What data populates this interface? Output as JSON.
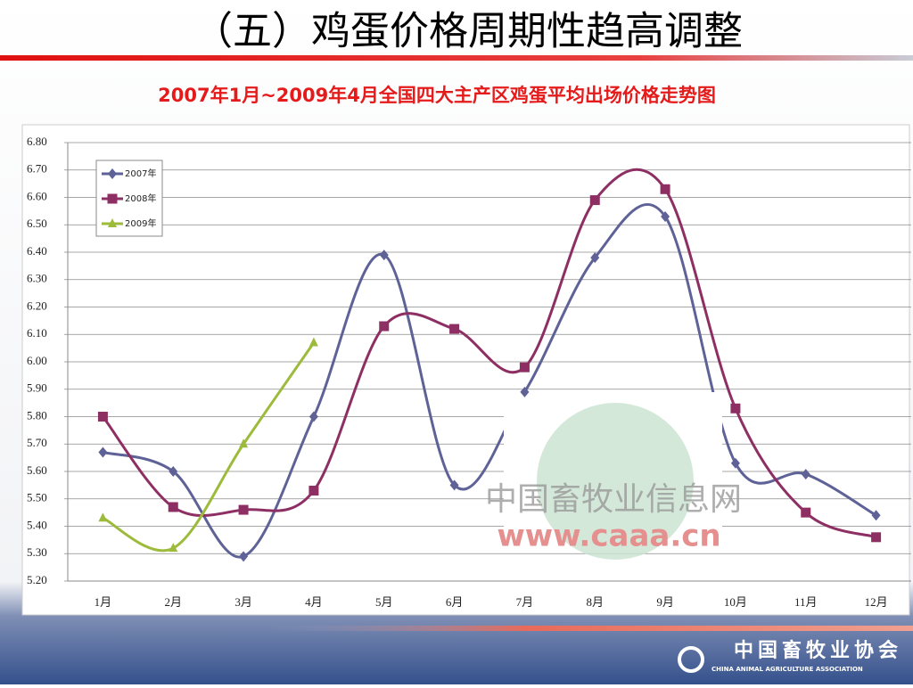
{
  "slide": {
    "title": "（五）鸡蛋价格周期性趋高调整",
    "watermark": [
      "中国畜牧业信息网",
      "www.caaa.cn"
    ],
    "footer_cn": "中国畜牧业协会",
    "footer_en": "CHINA ANIMAL AGRICULTURE ASSOCIATION"
  },
  "chart_data": {
    "type": "line",
    "title": "2007年1月~2009年4月全国四大主产区鸡蛋平均出场价格走势图",
    "categories": [
      "1月",
      "2月",
      "3月",
      "4月",
      "5月",
      "6月",
      "7月",
      "8月",
      "9月",
      "10月",
      "11月",
      "12月"
    ],
    "series": [
      {
        "name": "2007年",
        "color": "#5e6296",
        "marker": "diamond",
        "values": [
          5.67,
          5.6,
          5.29,
          5.8,
          6.39,
          5.55,
          5.89,
          6.38,
          6.53,
          5.63,
          5.59,
          5.44
        ]
      },
      {
        "name": "2008年",
        "color": "#8e2f64",
        "marker": "square",
        "values": [
          5.8,
          5.47,
          5.46,
          5.53,
          6.13,
          6.12,
          5.98,
          6.59,
          6.63,
          5.83,
          5.45,
          5.36
        ]
      },
      {
        "name": "2009年",
        "color": "#9dbb3b",
        "marker": "triangle",
        "values": [
          5.43,
          5.32,
          5.7,
          6.07,
          null,
          null,
          null,
          null,
          null,
          null,
          null,
          null
        ]
      }
    ],
    "ylim": [
      5.2,
      6.8
    ],
    "yticks": [
      {
        "value": 5.2,
        "label": "5.20"
      },
      {
        "value": 5.3,
        "label": "5.30"
      },
      {
        "value": 5.4,
        "label": "5.40"
      },
      {
        "value": 5.5,
        "label": "5.50"
      },
      {
        "value": 5.6,
        "label": "5.60"
      },
      {
        "value": 5.7,
        "label": "5.70"
      },
      {
        "value": 5.8,
        "label": "5.80"
      },
      {
        "value": 5.9,
        "label": "5.90"
      },
      {
        "value": 6.0,
        "label": "6.00"
      },
      {
        "value": 6.1,
        "label": "6.10"
      },
      {
        "value": 6.2,
        "label": "6.20"
      },
      {
        "value": 6.3,
        "label": "6.30"
      },
      {
        "value": 6.4,
        "label": "6.40"
      },
      {
        "value": 6.5,
        "label": "6.50"
      },
      {
        "value": 6.6,
        "label": "6.60"
      },
      {
        "value": 6.7,
        "label": "6.70"
      },
      {
        "value": 6.8,
        "label": "6.80"
      }
    ],
    "grid": true,
    "legend": "upper-left",
    "smooth": true
  }
}
